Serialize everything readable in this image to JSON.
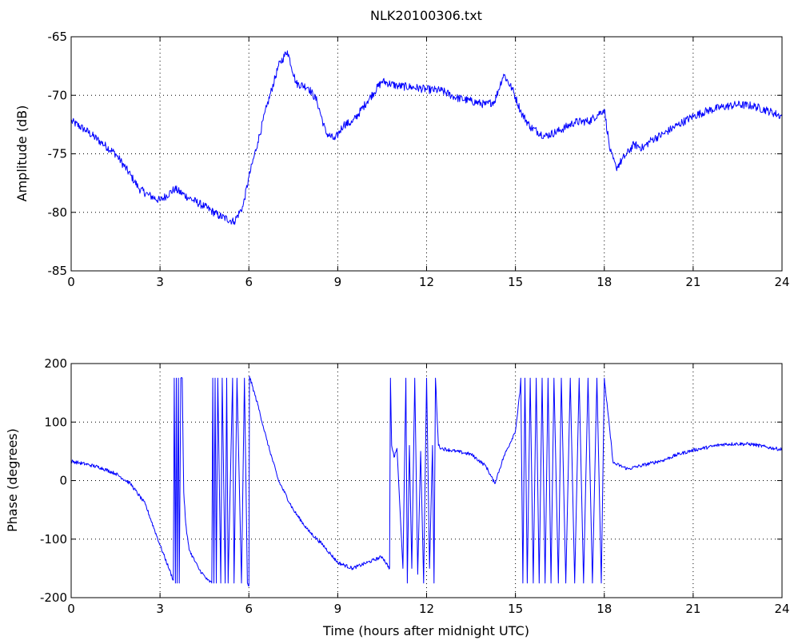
{
  "chart_data": [
    {
      "type": "line",
      "title": "NLK20100306.txt",
      "xlabel": "",
      "ylabel": "Amplitude (dB)",
      "xlim": [
        0,
        24
      ],
      "ylim": [
        -85,
        -65
      ],
      "xticks": [
        0,
        3,
        6,
        9,
        12,
        15,
        18,
        21,
        24
      ],
      "yticks": [
        -85,
        -80,
        -75,
        -70,
        -65
      ],
      "grid": true,
      "color": "#0000ff",
      "noise": 0.35,
      "series": [
        {
          "x": [
            0,
            0.5,
            1,
            1.5,
            2,
            2.3,
            2.6,
            3,
            3.5,
            4,
            4.5,
            5,
            5.5,
            5.8,
            6,
            6.3,
            6.6,
            7,
            7.3,
            7.6,
            8,
            8.3,
            8.6,
            8.9,
            9.2,
            9.5,
            10,
            10.5,
            11,
            11.5,
            12,
            12.5,
            13,
            13.5,
            14,
            14.3,
            14.6,
            14.9,
            15.2,
            15.5,
            16,
            16.5,
            17,
            17.5,
            18,
            18.2,
            18.4,
            18.7,
            19,
            19.3,
            19.6,
            20,
            20.5,
            21,
            21.5,
            22,
            22.5,
            23,
            23.5,
            24
          ],
          "y": [
            -72.2,
            -73,
            -74,
            -75,
            -76.8,
            -78,
            -78.5,
            -79,
            -78,
            -78.8,
            -79.5,
            -80.3,
            -80.8,
            -79.5,
            -77,
            -74,
            -71,
            -67.5,
            -66.2,
            -69,
            -69.3,
            -70.5,
            -73.2,
            -73.8,
            -72.5,
            -72.3,
            -70.5,
            -68.8,
            -69.2,
            -69.3,
            -69.5,
            -69.6,
            -70.2,
            -70.5,
            -70.8,
            -70.5,
            -68.2,
            -69.5,
            -71.5,
            -72.7,
            -73.5,
            -73,
            -72.3,
            -72.2,
            -71.2,
            -74.8,
            -76.2,
            -75.2,
            -74.2,
            -74.5,
            -73.8,
            -73.3,
            -72.5,
            -71.8,
            -71.3,
            -71,
            -70.8,
            -70.9,
            -71.3,
            -71.8
          ]
        }
      ]
    },
    {
      "type": "line",
      "title": "",
      "xlabel": "Time (hours after midnight UTC)",
      "ylabel": "Phase (degrees)",
      "xlim": [
        0,
        24
      ],
      "ylim": [
        -200,
        200
      ],
      "xticks": [
        0,
        3,
        6,
        9,
        12,
        15,
        18,
        21,
        24
      ],
      "yticks": [
        -200,
        -100,
        0,
        100,
        200
      ],
      "grid": true,
      "color": "#0000ff",
      "noise": 3,
      "series": [
        {
          "x": [
            0,
            0.3,
            0.6,
            1,
            1.5,
            2,
            2.5,
            3,
            3.3,
            3.45,
            3.48,
            3.52,
            3.55,
            3.58,
            3.62,
            3.65,
            3.7,
            3.75,
            3.8,
            3.85,
            3.9,
            4,
            4.3,
            4.6,
            4.75,
            4.78,
            4.82,
            4.86,
            4.9,
            4.95,
            5.05,
            5.1,
            5.2,
            5.25,
            5.3,
            5.45,
            5.5,
            5.6,
            5.75,
            5.85,
            5.95,
            6.0,
            6.02,
            6.3,
            6.6,
            7,
            7.5,
            8,
            8.5,
            9,
            9.5,
            10,
            10.5,
            10.75,
            10.78,
            10.82,
            10.86,
            10.9,
            11,
            11.2,
            11.3,
            11.35,
            11.42,
            11.5,
            11.6,
            11.7,
            11.8,
            11.9,
            12.0,
            12.1,
            12.2,
            12.25,
            12.3,
            12.4,
            12.5,
            13,
            13.5,
            14,
            14.3,
            14.6,
            15,
            15.15,
            15.18,
            15.25,
            15.32,
            15.4,
            15.5,
            15.6,
            15.7,
            15.8,
            15.9,
            16.0,
            16.1,
            16.2,
            16.3,
            16.45,
            16.55,
            16.7,
            16.85,
            17.0,
            17.15,
            17.3,
            17.45,
            17.6,
            17.75,
            17.9,
            18,
            18.3,
            18.8,
            19.2,
            19.6,
            20,
            20.5,
            21,
            21.5,
            22,
            22.5,
            23,
            23.5,
            24
          ],
          "y": [
            33,
            30,
            27,
            22,
            12,
            -5,
            -40,
            -110,
            -150,
            -170,
            175,
            -175,
            175,
            -175,
            175,
            -175,
            175,
            175,
            -20,
            -60,
            -90,
            -120,
            -150,
            -170,
            -175,
            175,
            -175,
            175,
            -175,
            175,
            -175,
            175,
            -175,
            175,
            -175,
            175,
            -175,
            175,
            -175,
            175,
            -175,
            -180,
            178,
            130,
            70,
            0,
            -50,
            -85,
            -110,
            -140,
            -150,
            -140,
            -130,
            -150,
            175,
            60,
            50,
            40,
            55,
            -150,
            175,
            -175,
            60,
            -150,
            175,
            -160,
            50,
            -175,
            175,
            -150,
            60,
            -175,
            175,
            60,
            55,
            50,
            45,
            25,
            -5,
            40,
            85,
            150,
            175,
            -175,
            175,
            -175,
            175,
            -175,
            175,
            -175,
            175,
            -175,
            175,
            -175,
            175,
            -175,
            175,
            -175,
            175,
            -175,
            175,
            -175,
            175,
            -175,
            175,
            -175,
            175,
            30,
            20,
            25,
            30,
            35,
            45,
            52,
            57,
            62,
            63,
            62,
            57,
            53
          ]
        }
      ]
    }
  ]
}
